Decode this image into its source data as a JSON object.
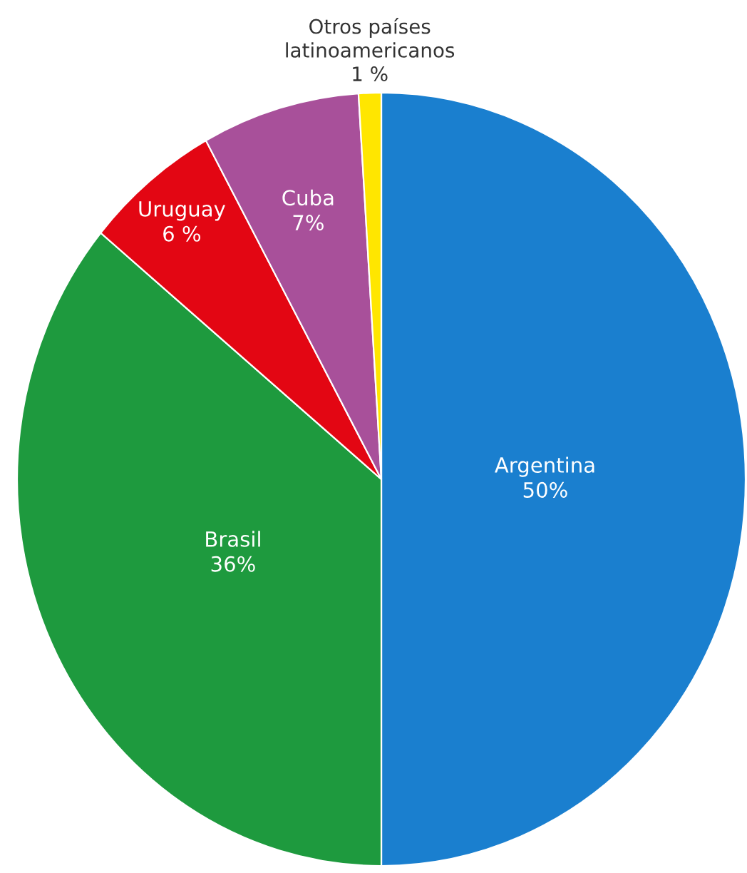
{
  "chart_data": {
    "type": "pie",
    "categories": [
      "Argentina",
      "Brasil",
      "Uruguay",
      "Cuba",
      "Otros países latinoamericanos"
    ],
    "values": [
      50,
      36,
      6,
      7,
      1
    ],
    "value_labels": [
      "50%",
      "36%",
      "6 %",
      "7%",
      "1 %"
    ],
    "colors": [
      "#1a7fcf",
      "#1e9a3e",
      "#e30613",
      "#a8509a",
      "#ffe600"
    ]
  }
}
